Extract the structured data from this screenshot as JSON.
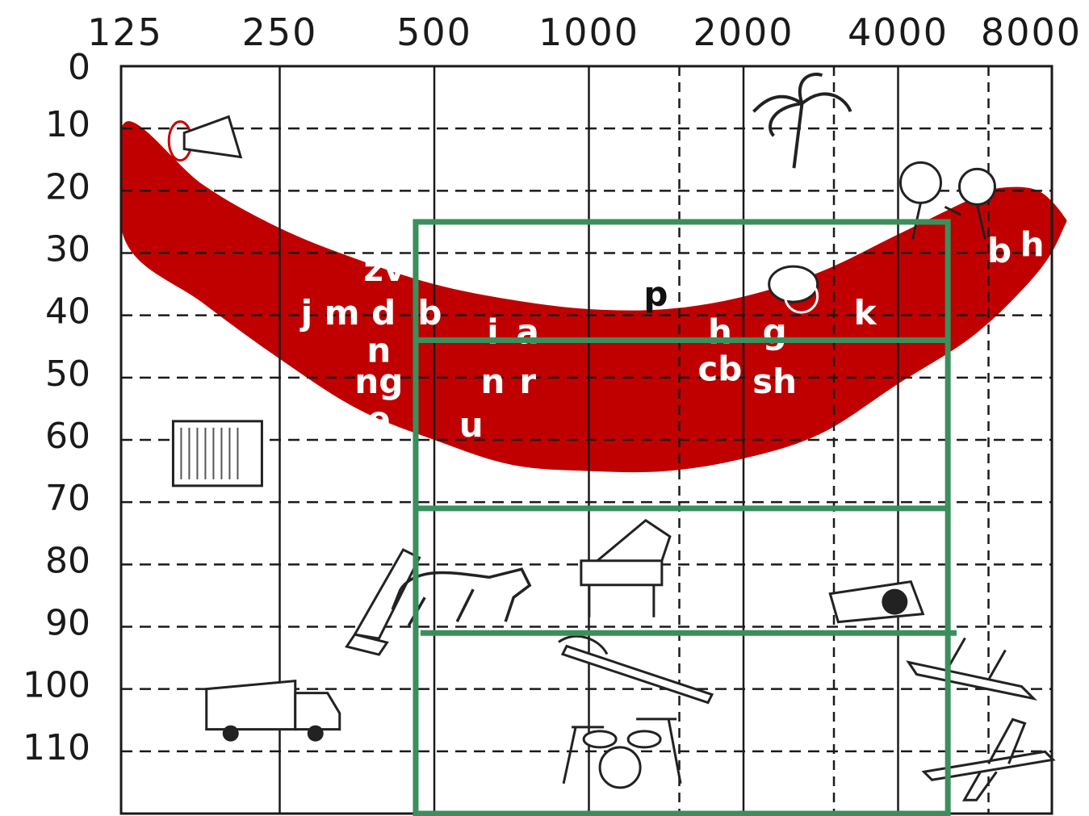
{
  "chart_data": {
    "type": "area",
    "title": "",
    "xlabel": "",
    "ylabel": "",
    "x_scale": "log2",
    "x_ticks": [
      125,
      250,
      500,
      1000,
      2000,
      4000,
      8000
    ],
    "x_tick_labels": [
      "125",
      "250",
      "500",
      "1000",
      "2000",
      "4000",
      "8000"
    ],
    "x_dashed_gridlines": [
      1500,
      3000,
      6000
    ],
    "y_inverted": true,
    "ylim": [
      0,
      120
    ],
    "y_ticks": [
      0,
      10,
      20,
      30,
      40,
      50,
      60,
      70,
      80,
      90,
      100,
      110
    ],
    "y_tick_labels": [
      "0",
      "10",
      "20",
      "30",
      "40",
      "50",
      "60",
      "70",
      "80",
      "90",
      "100",
      "110"
    ],
    "grid": true,
    "speech_banana": {
      "color": "#c00000",
      "upper": [
        {
          "x": 125,
          "y": 9
        },
        {
          "x": 177,
          "y": 19
        },
        {
          "x": 250,
          "y": 26
        },
        {
          "x": 354,
          "y": 31
        },
        {
          "x": 500,
          "y": 35
        },
        {
          "x": 707,
          "y": 37.5
        },
        {
          "x": 1000,
          "y": 39
        },
        {
          "x": 1414,
          "y": 39
        },
        {
          "x": 2000,
          "y": 37
        },
        {
          "x": 2828,
          "y": 33
        },
        {
          "x": 4000,
          "y": 27
        },
        {
          "x": 5657,
          "y": 21
        },
        {
          "x": 6400,
          "y": 19.5
        },
        {
          "x": 7500,
          "y": 20
        },
        {
          "x": 8400,
          "y": 24
        }
      ],
      "lower": [
        {
          "x": 125,
          "y": 28
        },
        {
          "x": 177,
          "y": 38
        },
        {
          "x": 250,
          "y": 47
        },
        {
          "x": 354,
          "y": 55
        },
        {
          "x": 500,
          "y": 60
        },
        {
          "x": 707,
          "y": 64
        },
        {
          "x": 1000,
          "y": 65
        },
        {
          "x": 1414,
          "y": 65
        },
        {
          "x": 2000,
          "y": 63
        },
        {
          "x": 2828,
          "y": 59
        },
        {
          "x": 4000,
          "y": 51
        },
        {
          "x": 5657,
          "y": 43
        },
        {
          "x": 7500,
          "y": 33
        },
        {
          "x": 8400,
          "y": 26
        }
      ]
    },
    "phonemes": [
      {
        "text": "zv",
        "x": 400,
        "y": 33
      },
      {
        "text": "j m d",
        "x": 340,
        "y": 40
      },
      {
        "text": "b",
        "x": 490,
        "y": 40
      },
      {
        "text": "n",
        "x": 390,
        "y": 46
      },
      {
        "text": "ng",
        "x": 390,
        "y": 51
      },
      {
        "text": "e",
        "x": 390,
        "y": 57
      },
      {
        "text": "i",
        "x": 650,
        "y": 43
      },
      {
        "text": "a",
        "x": 760,
        "y": 43
      },
      {
        "text": "n",
        "x": 650,
        "y": 51
      },
      {
        "text": "r",
        "x": 760,
        "y": 51
      },
      {
        "text": "u",
        "x": 590,
        "y": 58
      },
      {
        "text": "p",
        "x": 1350,
        "y": 37,
        "dark": true
      },
      {
        "text": "h",
        "x": 1800,
        "y": 43
      },
      {
        "text": "g",
        "x": 2300,
        "y": 43
      },
      {
        "text": "cb",
        "x": 1800,
        "y": 49
      },
      {
        "text": "sh",
        "x": 2300,
        "y": 51
      },
      {
        "text": "k",
        "x": 3450,
        "y": 40
      },
      {
        "text": "b",
        "x": 6300,
        "y": 30
      },
      {
        "text": "h",
        "x": 7300,
        "y": 29
      }
    ],
    "icons": [
      {
        "name": "bird-icon",
        "x": 160,
        "y": 12
      },
      {
        "name": "air-conditioner-icon",
        "x": 155,
        "y": 57
      },
      {
        "name": "truck-icon",
        "x": 180,
        "y": 100
      },
      {
        "name": "lawn-mower-icon",
        "x": 350,
        "y": 88
      },
      {
        "name": "palm-tree-icon",
        "x": 2600,
        "y": 6
      },
      {
        "name": "children-icon",
        "x": 5500,
        "y": 20
      },
      {
        "name": "bird-singing-icon",
        "x": 2500,
        "y": 35
      },
      {
        "name": "dog-icon",
        "x": 640,
        "y": 84
      },
      {
        "name": "piano-icon",
        "x": 1200,
        "y": 82
      },
      {
        "name": "telephone-icon",
        "x": 3800,
        "y": 86
      },
      {
        "name": "chainsaw-icon",
        "x": 1300,
        "y": 97
      },
      {
        "name": "drum-kit-icon",
        "x": 1150,
        "y": 110
      },
      {
        "name": "motorcycle-icon",
        "x": 5600,
        "y": 97
      },
      {
        "name": "airplane-icon",
        "x": 6000,
        "y": 112
      }
    ],
    "overlay_boxes": {
      "color": "#3a8f5c",
      "outer": {
        "x_min": 460,
        "x_max": 5000,
        "y_min": 25,
        "y_max": 120
      },
      "divider_lines": [
        {
          "x_min": 460,
          "x_max": 5000,
          "y": 44
        },
        {
          "x_min": 460,
          "x_max": 5000,
          "y": 71
        },
        {
          "x_min": 470,
          "x_max": 5200,
          "y": 91
        }
      ]
    }
  }
}
